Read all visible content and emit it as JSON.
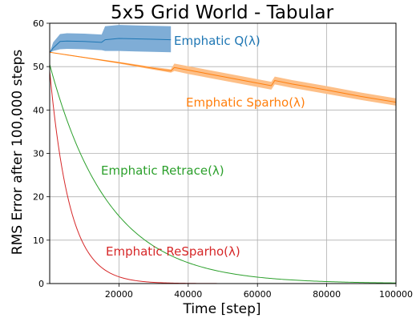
{
  "chart_data": {
    "type": "line",
    "title": "5x5 Grid World - Tabular",
    "xlabel": "Time [step]",
    "ylabel": "RMS Error after 100,000 steps",
    "xlim": [
      0,
      100000
    ],
    "ylim": [
      0,
      60
    ],
    "xticks": [
      20000,
      40000,
      60000,
      80000,
      100000
    ],
    "xtick_labels": [
      "20000",
      "40000",
      "60000",
      "80000",
      "100000"
    ],
    "yticks": [
      0,
      10,
      20,
      30,
      40,
      50,
      60
    ],
    "ytick_labels": [
      "0",
      "10",
      "20",
      "30",
      "40",
      "50",
      "60"
    ],
    "grid": true,
    "legend": "inline labels",
    "series": [
      {
        "name": "Emphatic Q(λ)",
        "color": "#1f77b4",
        "band_color": "#7fadd6",
        "x": [
          0,
          1000,
          3000,
          5000,
          10000,
          15000,
          16000,
          20000,
          25000,
          30000,
          35000
        ],
        "y": [
          53.2,
          54.3,
          55.8,
          55.9,
          55.8,
          55.6,
          56.2,
          56.5,
          56.4,
          56.3,
          56.2
        ],
        "lower": [
          53.2,
          53.6,
          54.0,
          54.1,
          54.0,
          53.8,
          53.6,
          53.6,
          53.5,
          53.4,
          53.3
        ],
        "upper": [
          53.2,
          55.6,
          57.5,
          57.7,
          57.6,
          57.4,
          59.3,
          59.6,
          59.5,
          59.4,
          59.3
        ]
      },
      {
        "name": "Emphatic Sparho(λ)",
        "color": "#ff7f0e",
        "band_color": "#fdbf87",
        "x": [
          0,
          5000,
          10000,
          20000,
          30000,
          35000,
          36000,
          40000,
          50000,
          60000,
          64000,
          65000,
          70000,
          80000,
          90000,
          100000
        ],
        "y": [
          53.3,
          52.7,
          52.1,
          50.9,
          49.6,
          49.0,
          49.8,
          49.2,
          47.7,
          46.2,
          45.6,
          46.8,
          46.0,
          44.6,
          43.1,
          41.8
        ],
        "lower": [
          53.3,
          52.6,
          52.0,
          50.7,
          49.3,
          48.6,
          49.0,
          48.3,
          46.8,
          45.3,
          44.7,
          45.9,
          45.1,
          43.7,
          42.3,
          41.0
        ],
        "upper": [
          53.3,
          52.8,
          52.2,
          51.1,
          49.9,
          49.4,
          50.7,
          50.1,
          48.6,
          47.1,
          46.5,
          47.7,
          46.9,
          45.5,
          44.0,
          42.7
        ]
      },
      {
        "name": "Emphatic Retrace(λ)",
        "color": "#2ca02c",
        "decay": 17000,
        "start": 50.5
      },
      {
        "name": "Emphatic ReSparho(λ)",
        "color": "#d62728",
        "decay": 5800,
        "start": 49.0
      }
    ]
  }
}
